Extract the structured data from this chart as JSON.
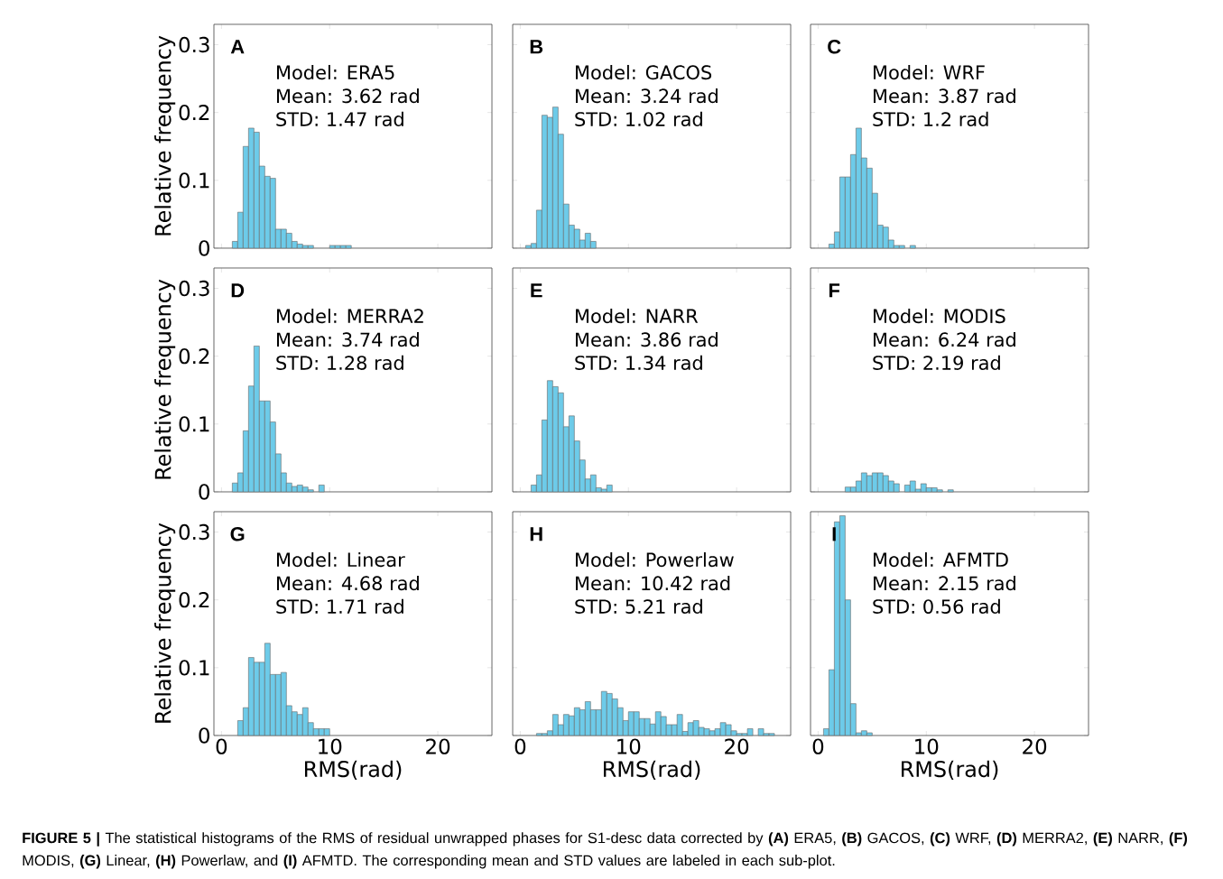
{
  "chart_data": [
    {
      "type": "histogram",
      "title": "A",
      "ylabel": "Relative frequency",
      "tick_labels": "y",
      "color": "#6dcbe9",
      "xlim": [
        -0.7,
        25
      ],
      "ylim": [
        0,
        0.33
      ],
      "xticks": [
        0,
        10,
        20
      ],
      "yticks": [
        0,
        0.1,
        0.2,
        0.3
      ],
      "bins": [
        1.0,
        1.5,
        2.0,
        2.5,
        3.0,
        3.5,
        4.0,
        4.5,
        5.0,
        5.5,
        6.0,
        6.5,
        7.0,
        7.5,
        8.0,
        8.5,
        9.0,
        9.5,
        10.0,
        10.5,
        11.0,
        11.5,
        12.0
      ],
      "values": [
        0.01,
        0.053,
        0.15,
        0.177,
        0.171,
        0.121,
        0.106,
        0.103,
        0.028,
        0.028,
        0.022,
        0.01,
        0.006,
        0.004,
        0.004,
        null,
        null,
        null,
        0.004,
        0.004,
        0.004,
        0.004
      ],
      "annotations": [
        "Model: ERA5",
        "Mean: 3.62 rad",
        "STD: 1.47 rad"
      ]
    },
    {
      "type": "histogram",
      "title": "B",
      "tick_labels": false,
      "color": "#6dcbe9",
      "xlim": [
        -0.7,
        25
      ],
      "ylim": [
        0,
        0.33
      ],
      "xticks": [
        0,
        10,
        20
      ],
      "yticks": [
        0,
        0.1,
        0.2,
        0.3
      ],
      "bins": [
        0.5,
        1.0,
        1.5,
        2.0,
        2.5,
        3.0,
        3.5,
        4.0,
        4.5,
        5.0,
        5.5,
        6.0,
        6.5,
        7.0
      ],
      "values": [
        0.004,
        0.007,
        0.056,
        0.196,
        0.193,
        0.208,
        0.168,
        0.065,
        0.034,
        0.028,
        0.012,
        0.022,
        0.01
      ],
      "annotations": [
        "Model: GACOS",
        "Mean: 3.24 rad",
        "STD: 1.02 rad"
      ]
    },
    {
      "type": "histogram",
      "title": "C",
      "tick_labels": false,
      "color": "#6dcbe9",
      "xlim": [
        -0.7,
        25
      ],
      "ylim": [
        0,
        0.33
      ],
      "xticks": [
        0,
        10,
        20
      ],
      "yticks": [
        0,
        0.1,
        0.2,
        0.3
      ],
      "bins": [
        1.0,
        1.5,
        2.0,
        2.5,
        3.0,
        3.5,
        4.0,
        4.5,
        5.0,
        5.5,
        6.0,
        6.5,
        7.0,
        7.5,
        8.0,
        8.5,
        9.0
      ],
      "values": [
        0.006,
        0.024,
        0.105,
        0.105,
        0.138,
        0.177,
        0.133,
        0.118,
        0.081,
        0.034,
        0.031,
        0.012,
        0.004,
        0.004,
        null,
        0.004
      ],
      "annotations": [
        "Model: WRF",
        "Mean: 3.87 rad",
        "STD: 1.2 rad"
      ]
    },
    {
      "type": "histogram",
      "title": "D",
      "ylabel": "Relative frequency",
      "tick_labels": "y",
      "color": "#6dcbe9",
      "xlim": [
        -0.7,
        25
      ],
      "ylim": [
        0,
        0.33
      ],
      "xticks": [
        0,
        10,
        20
      ],
      "yticks": [
        0,
        0.1,
        0.2,
        0.3
      ],
      "bins": [
        1.0,
        1.5,
        2.0,
        2.5,
        3.0,
        3.5,
        4.0,
        4.5,
        5.0,
        5.5,
        6.0,
        6.5,
        7.0,
        7.5,
        8.0,
        8.5,
        9.0,
        9.5
      ],
      "values": [
        0.013,
        0.028,
        0.09,
        0.156,
        0.215,
        0.134,
        0.134,
        0.103,
        0.056,
        0.028,
        0.013,
        0.008,
        0.01,
        0.007,
        0.003,
        null,
        0.01
      ],
      "annotations": [
        "Model: MERRA2",
        "Mean: 3.74 rad",
        "STD: 1.28 rad"
      ]
    },
    {
      "type": "histogram",
      "title": "E",
      "tick_labels": false,
      "color": "#6dcbe9",
      "xlim": [
        -0.7,
        25
      ],
      "ylim": [
        0,
        0.33
      ],
      "xticks": [
        0,
        10,
        20
      ],
      "yticks": [
        0,
        0.1,
        0.2,
        0.3
      ],
      "bins": [
        1.0,
        1.5,
        2.0,
        2.5,
        3.0,
        3.5,
        4.0,
        4.5,
        5.0,
        5.5,
        6.0,
        6.5,
        7.0,
        7.5,
        8.0,
        8.5
      ],
      "values": [
        0.01,
        0.025,
        0.106,
        0.164,
        0.155,
        0.146,
        0.096,
        0.112,
        0.075,
        0.047,
        0.019,
        0.025,
        0.006,
        0.004,
        0.01
      ],
      "annotations": [
        "Model: NARR",
        "Mean: 3.86 rad",
        "STD: 1.34 rad"
      ]
    },
    {
      "type": "histogram",
      "title": "F",
      "tick_labels": false,
      "color": "#6dcbe9",
      "xlim": [
        -0.7,
        25
      ],
      "ylim": [
        0,
        0.33
      ],
      "xticks": [
        0,
        10,
        20
      ],
      "yticks": [
        0,
        0.1,
        0.2,
        0.3
      ],
      "bins": [
        2.5,
        3.0,
        3.5,
        4.0,
        4.5,
        5.0,
        5.5,
        6.0,
        6.5,
        7.0,
        7.5,
        8.0,
        8.5,
        9.0,
        9.5,
        10.0,
        10.5,
        11.0,
        11.5,
        12.0,
        12.5
      ],
      "values": [
        0.007,
        0.007,
        0.016,
        0.028,
        0.024,
        0.028,
        0.028,
        0.024,
        0.016,
        0.012,
        null,
        0.01,
        0.016,
        0.004,
        0.012,
        0.006,
        0.006,
        0.003,
        null,
        0.003
      ],
      "annotations": [
        "Model: MODIS",
        "Mean: 6.24 rad",
        "STD: 2.19 rad"
      ]
    },
    {
      "type": "histogram",
      "title": "G",
      "xlabel": "RMS(rad)",
      "ylabel": "Relative frequency",
      "color": "#6dcbe9",
      "xlim": [
        -0.7,
        25
      ],
      "ylim": [
        0,
        0.33
      ],
      "xticks": [
        0,
        10,
        20
      ],
      "yticks": [
        0,
        0.1,
        0.2,
        0.3
      ],
      "bins": [
        1.5,
        2.0,
        2.5,
        3.0,
        3.5,
        4.0,
        4.5,
        5.0,
        5.5,
        6.0,
        6.5,
        7.0,
        7.5,
        8.0,
        8.5,
        9.0,
        9.5,
        10.0
      ],
      "values": [
        0.022,
        0.041,
        0.115,
        0.108,
        0.108,
        0.136,
        0.09,
        0.09,
        0.093,
        0.044,
        0.035,
        0.031,
        0.041,
        0.019,
        0.01,
        0.01,
        0.01
      ],
      "annotations": [
        "Model: Linear",
        "Mean: 4.68 rad",
        "STD: 1.71 rad"
      ]
    },
    {
      "type": "histogram",
      "title": "H",
      "xlabel": "RMS(rad)",
      "tick_labels": "x",
      "color": "#6dcbe9",
      "xlim": [
        -0.7,
        25
      ],
      "ylim": [
        0,
        0.33
      ],
      "xticks": [
        0,
        10,
        20
      ],
      "yticks": [
        0,
        0.1,
        0.2,
        0.3
      ],
      "bins": [
        1.5,
        2.0,
        2.5,
        3.0,
        3.5,
        4.0,
        4.5,
        5.0,
        5.5,
        6.0,
        6.5,
        7.0,
        7.5,
        8.0,
        8.5,
        9.0,
        9.5,
        10.0,
        10.5,
        11.0,
        11.5,
        12.0,
        12.5,
        13.0,
        13.5,
        14.0,
        14.5,
        15.0,
        15.5,
        16.0,
        16.5,
        17.0,
        17.5,
        18.0,
        18.5,
        19.0,
        19.5,
        20.0,
        20.5,
        21.0,
        21.5,
        22.0,
        22.5,
        23.0,
        23.5
      ],
      "values": [
        0.003,
        0.003,
        0.007,
        0.031,
        0.016,
        0.031,
        0.029,
        0.041,
        0.038,
        0.05,
        0.038,
        0.038,
        0.065,
        0.062,
        0.054,
        0.041,
        0.022,
        0.035,
        0.035,
        0.025,
        0.025,
        0.017,
        0.035,
        0.028,
        0.016,
        0.016,
        0.031,
        0.006,
        0.019,
        0.022,
        0.012,
        0.01,
        0.007,
        0.01,
        0.019,
        0.016,
        0.007,
        0.003,
        0.003,
        0.01,
        null,
        0.01,
        0.003,
        0.003
      ],
      "annotations": [
        "Model: Powerlaw",
        "Mean: 10.42 rad",
        "STD: 5.21 rad"
      ]
    },
    {
      "type": "histogram",
      "title": "I",
      "xlabel": "RMS(rad)",
      "tick_labels": "x",
      "color": "#6dcbe9",
      "xlim": [
        -0.7,
        25
      ],
      "ylim": [
        0,
        0.33
      ],
      "xticks": [
        0,
        10,
        20
      ],
      "yticks": [
        0,
        0.1,
        0.2,
        0.3
      ],
      "bins": [
        0.5,
        1.0,
        1.5,
        2.0,
        2.5,
        3.0,
        3.5,
        4.0,
        4.5,
        5.0
      ],
      "values": [
        0.01,
        0.097,
        0.315,
        0.324,
        0.2,
        0.047,
        0.004,
        0.007,
        0.004
      ],
      "annotations": [
        "Model: AFMTD",
        "Mean: 2.15 rad",
        "STD: 0.56 rad",
        "**FIGURE 5 |** The statistical histograms of the RMS of residual unwrapped phases for S1-desc data corrected by **(A)** ERA5, **(B)** GACOS, **(C)** WRF, **(D)** MERRA2, **(E)** NARR, **(F)** MODIS, **(G)** Linear, **(H)** Powerlaw, and **(I)** AFMTD. The corresponding mean and STD values are labeled in each sub-plot."
      ]
    }
  ]
}
